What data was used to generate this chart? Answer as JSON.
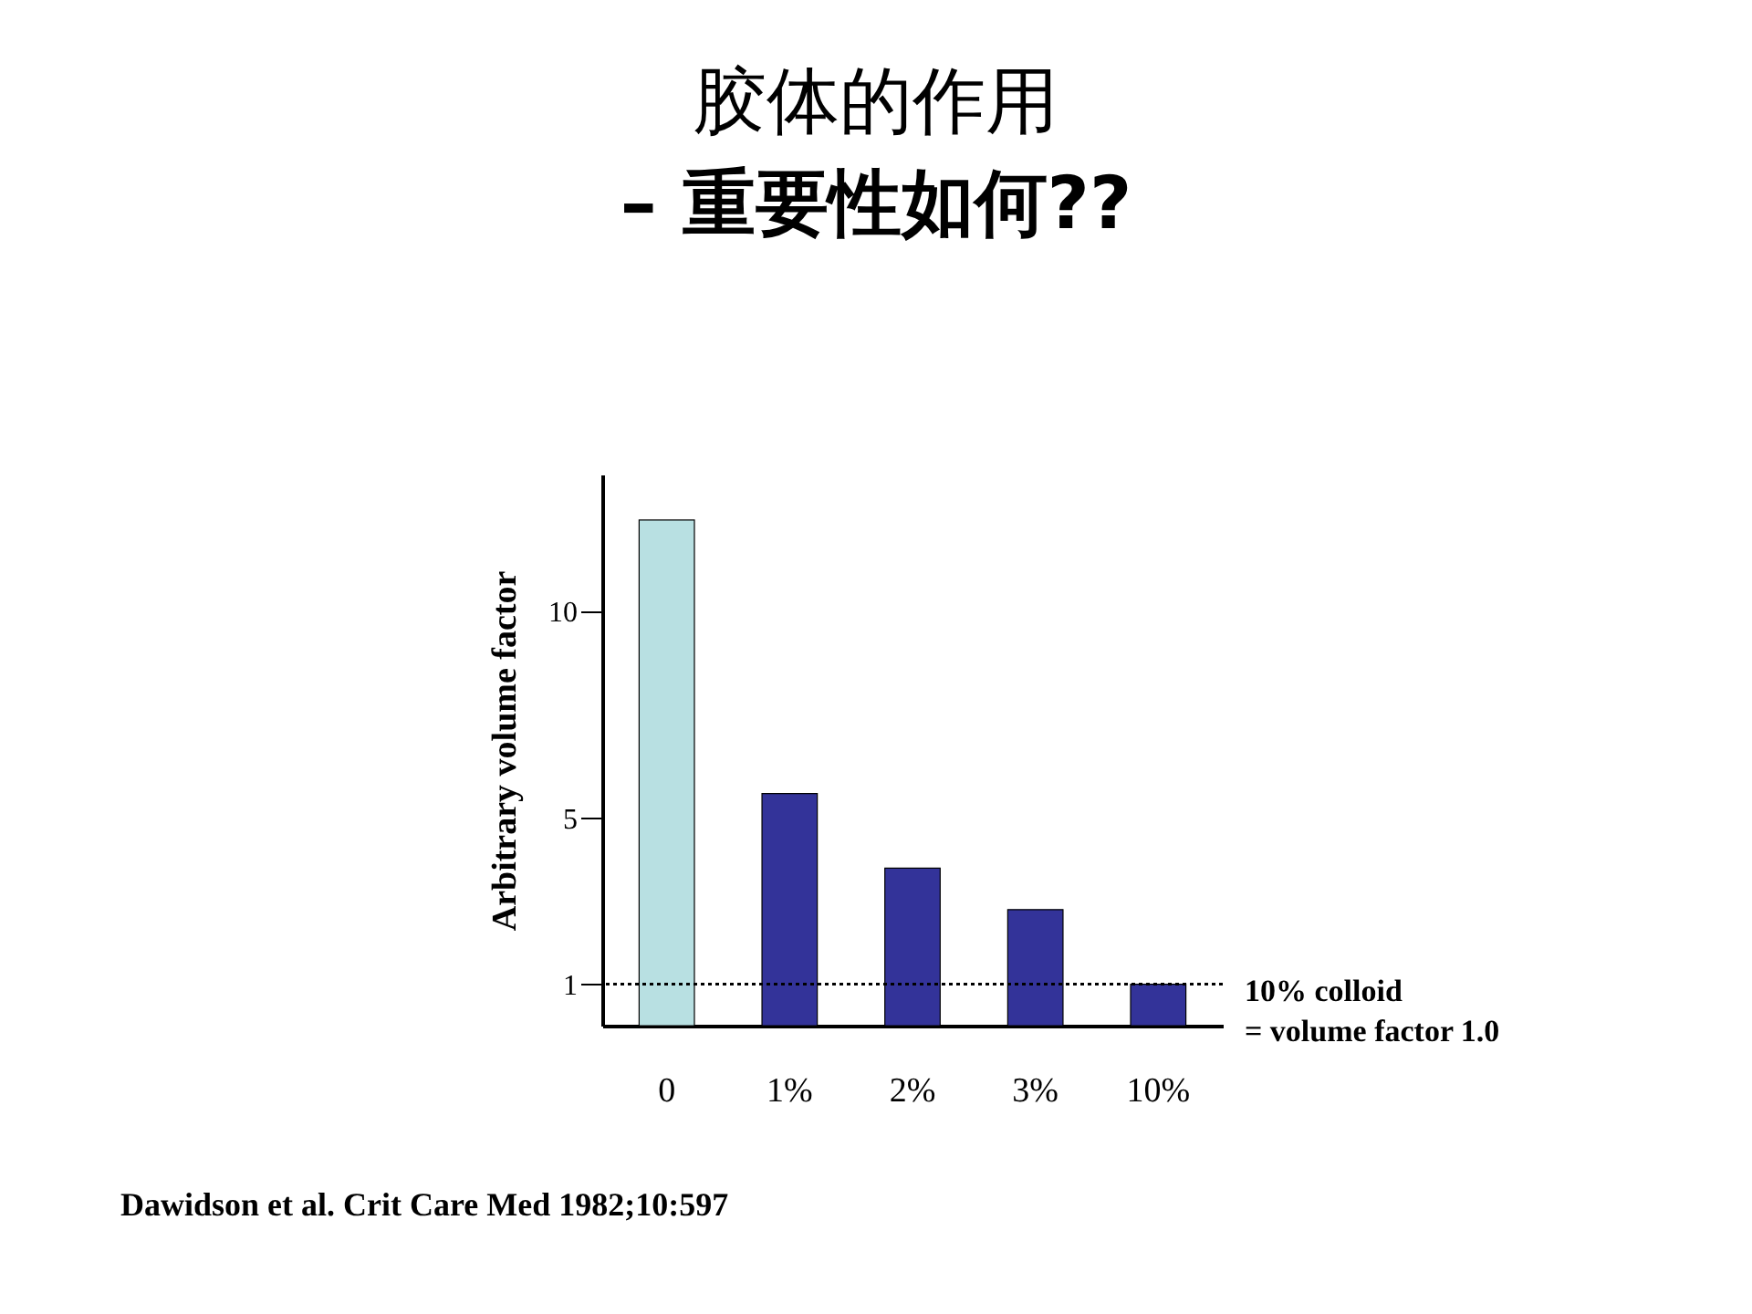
{
  "chart_data": {
    "type": "bar",
    "title": "胶体的作用",
    "subtitle": "– 重要性如何??",
    "ylabel": "Arbitrary volume factor",
    "categories": [
      "0",
      "1%",
      "2%",
      "3%",
      "10%"
    ],
    "values": [
      12.2,
      5.6,
      3.8,
      2.8,
      1.0
    ],
    "colors": [
      "#b8e0e2",
      "#333399",
      "#333399",
      "#333399",
      "#333399"
    ],
    "ylim": [
      0,
      13.3
    ],
    "yticks": [
      1,
      5,
      10
    ],
    "grid": false,
    "ref_lines": [
      {
        "axis": "y",
        "value": 1,
        "label": "10% colloid\n= volume factor 1.0",
        "line_style": "dotted",
        "color": "#000000"
      }
    ],
    "annotations": [
      "Dawidson et al. Crit Care Med 1982;10:597"
    ]
  }
}
